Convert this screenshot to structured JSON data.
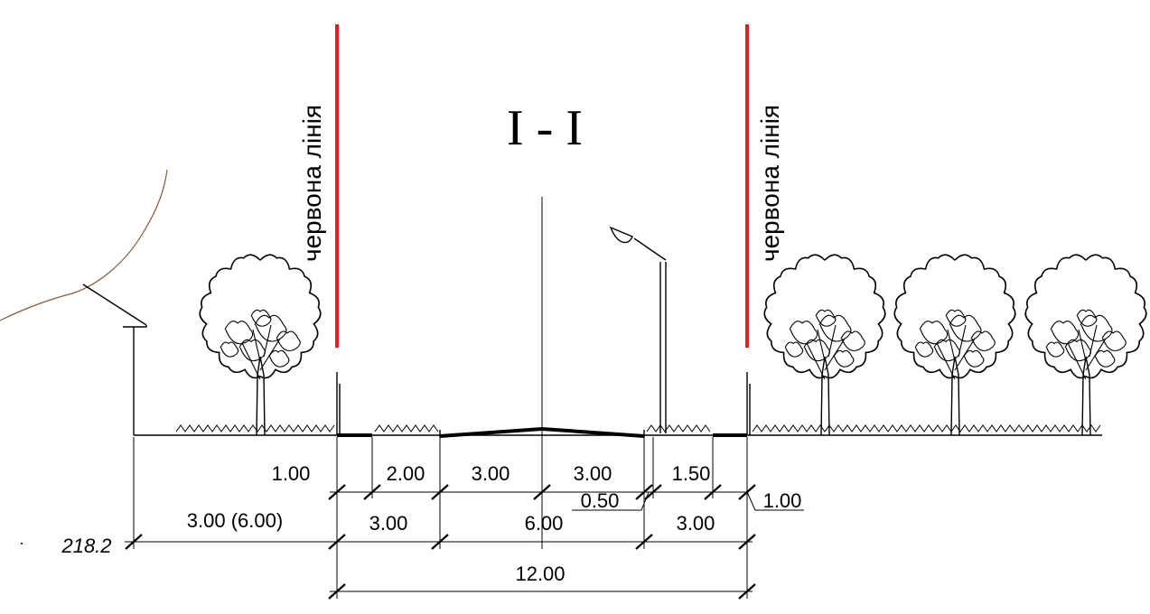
{
  "section_title": "I - I",
  "red_line": {
    "label": "червона лінія",
    "color": "#e02020"
  },
  "elevation": "218.2",
  "dimensions_row1": [
    "1.00",
    "2.00",
    "3.00",
    "3.00",
    "0.50",
    "1.50",
    "1.00"
  ],
  "dimensions_row2": [
    "3.00 (6.00)",
    "3.00",
    "6.00",
    "3.00"
  ],
  "dimensions_total": "12.00",
  "terrain_line_color": "#8b5a3c"
}
